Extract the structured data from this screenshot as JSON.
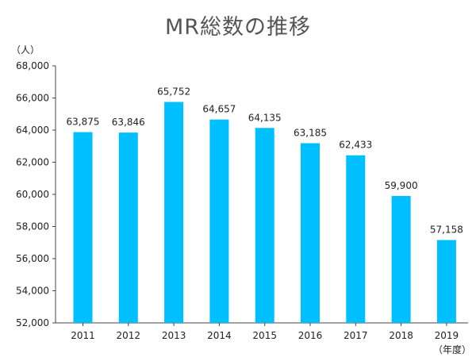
{
  "chart_data": {
    "type": "bar",
    "title": "MR総数の推移",
    "ylabel": "（人）",
    "xlabel": "（年度）",
    "categories": [
      "2011",
      "2012",
      "2013",
      "2014",
      "2015",
      "2016",
      "2017",
      "2018",
      "2019"
    ],
    "values": [
      63875,
      63846,
      65752,
      64657,
      64135,
      63185,
      62433,
      59900,
      57158
    ],
    "data_labels": [
      "63,875",
      "63,846",
      "65,752",
      "64,657",
      "64,135",
      "63,185",
      "62,433",
      "59,900",
      "57,158"
    ],
    "ylim": [
      52000,
      68000
    ],
    "yticks": [
      52000,
      54000,
      56000,
      58000,
      60000,
      62000,
      64000,
      66000,
      68000
    ],
    "ytick_labels": [
      "52,000",
      "54,000",
      "56,000",
      "58,000",
      "60,000",
      "62,000",
      "64,000",
      "66,000",
      "68,000"
    ],
    "grid": false,
    "bar_color": "#00BFFF"
  }
}
